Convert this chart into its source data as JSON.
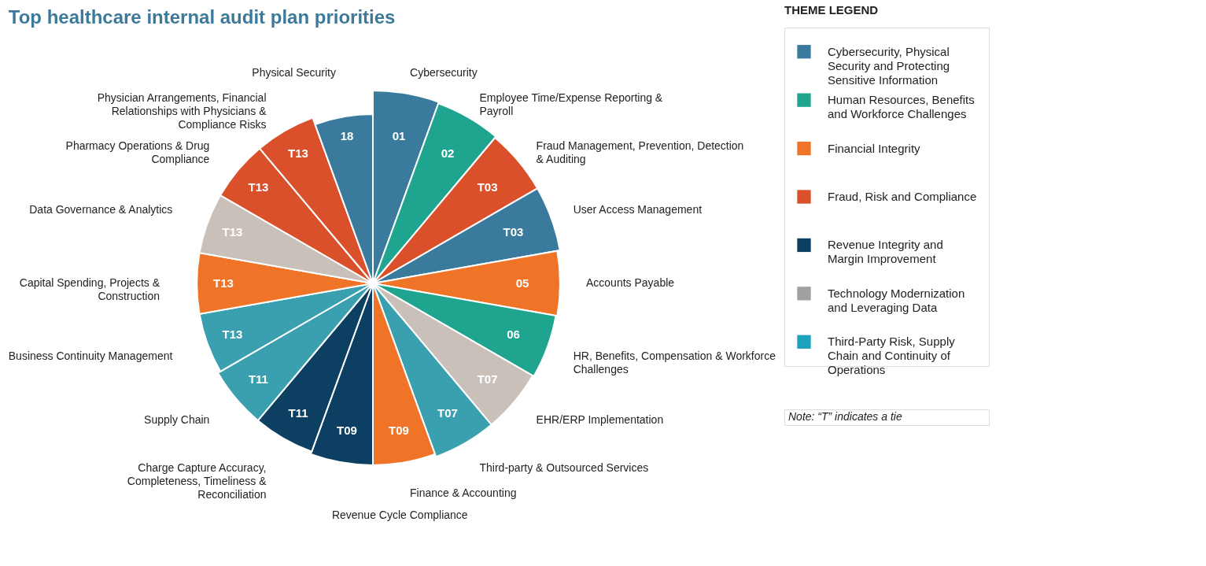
{
  "chart_data": [
    {
      "type": "other",
      "title": "Top healthcare internal audit plan priorities",
      "categories": [
        "Cybersecurity",
        "Employee Time/Expense Reporting & Payroll",
        "Fraud Management, Prevention, Detection & Auditing",
        "User Access Management",
        "Accounts Payable",
        "HR, Benefits, Compensation & Workforce Challenges",
        "EHR/ERP Implementation",
        "Third-party & Outsourced Services",
        "Finance & Accounting",
        "Revenue Cycle Compliance",
        "Charge Capture Accuracy, Completeness, Timeliness & Reconciliation",
        "Supply Chain",
        "Business Continuity Management",
        "Capital Spending, Projects & Construction",
        "Data Governance & Analytics",
        "Pharmacy Operations & Drug Compliance",
        "Physician Arrangements, Financial Relationships with Physicians & Compliance Risks",
        "Physical Security"
      ],
      "values": [
        1,
        2,
        3,
        3,
        5,
        6,
        7,
        7,
        9,
        9,
        11,
        11,
        13,
        13,
        13,
        13,
        13,
        18
      ],
      "value_labels": [
        "01",
        "02",
        "T03",
        "T03",
        "05",
        "06",
        "T07",
        "T07",
        "T09",
        "T09",
        "T11",
        "T11",
        "T13",
        "T13",
        "T13",
        "T13",
        "T13",
        "18"
      ],
      "colors": [
        "#3a7a9c",
        "#1fa58f",
        "#d9502b",
        "#3a7a9c",
        "#ef7428",
        "#1fa58f",
        "#c9c1b9",
        "#3aa0b0",
        "#ef7428",
        "#0d3f63",
        "#0d3f63",
        "#3aa0b0",
        "#3aa0b0",
        "#ef7428",
        "#c9c1b9",
        "#d9502b",
        "#d9502b",
        "#3a7a9c"
      ]
    },
    {
      "type": "other",
      "legend_title": "THEME LEGEND",
      "legend": "right",
      "series": [
        {
          "name": "Cybersecurity, Physical Security and Protecting Sensitive Information",
          "color": "#3a7a9c"
        },
        {
          "name": "Human Resources, Benefits and Workforce Challenges",
          "color": "#1fa58f"
        },
        {
          "name": "Financial Integrity",
          "color": "#ef7428"
        },
        {
          "name": "Fraud, Risk and Compliance",
          "color": "#d9502b"
        },
        {
          "name": "Revenue Integrity and Margin Improvement",
          "color": "#0d3f63"
        },
        {
          "name": "Technology Modernization and Leveraging Data",
          "color": "#a0a0a0"
        },
        {
          "name": "Third-Party Risk, Supply Chain and Continuity of Operations",
          "color": "#1da2bb"
        }
      ],
      "annotations": [
        "Note: “T” indicates a tie"
      ]
    }
  ]
}
